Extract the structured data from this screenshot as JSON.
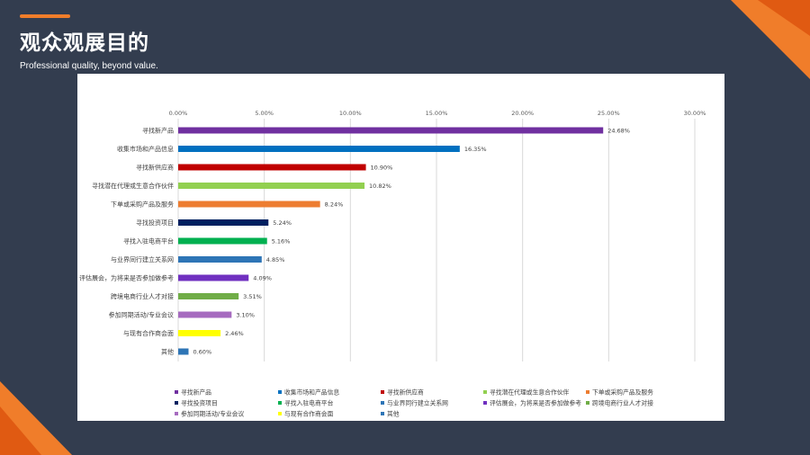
{
  "header": {
    "title": "观众观展目的",
    "subtitle": "Professional quality, beyond value."
  },
  "colors": {
    "background": "#333d4f",
    "accent": "#f07d2a"
  },
  "chart_data": {
    "type": "bar",
    "orientation": "horizontal",
    "xlim": [
      0,
      30
    ],
    "x_ticks": [
      "0.00%",
      "5.00%",
      "10.00%",
      "15.00%",
      "20.00%",
      "25.00%",
      "30.00%"
    ],
    "grid": true,
    "legend_position": "bottom",
    "categories": [
      "寻找新产品",
      "收集市场和产品信息",
      "寻找新供应商",
      "寻找潜在代理或生意合作伙伴",
      "下单或采购产品及服务",
      "寻找投资项目",
      "寻找入驻电商平台",
      "与业界同行建立关系网",
      "评估展会，为将来是否参加做参考",
      "跨境电商行业人才对接",
      "参加同期活动/专业会议",
      "与现有合作商会面",
      "其他"
    ],
    "values": [
      24.68,
      16.35,
      10.9,
      10.82,
      8.24,
      5.24,
      5.16,
      4.85,
      4.09,
      3.51,
      3.1,
      2.46,
      0.6
    ],
    "value_labels": [
      "24.68%",
      "16.35%",
      "10.90%",
      "10.82%",
      "8.24%",
      "5.24%",
      "5.16%",
      "4.85%",
      "4.09%",
      "3.51%",
      "3.10%",
      "2.46%",
      "0.60%"
    ],
    "colors": [
      "#7030a0",
      "#0070c0",
      "#c00000",
      "#92d050",
      "#ed7d31",
      "#002060",
      "#00b050",
      "#2e75b6",
      "#7030c0",
      "#70ad47",
      "#a66bbf",
      "#ffff00",
      "#2e75b6"
    ]
  }
}
